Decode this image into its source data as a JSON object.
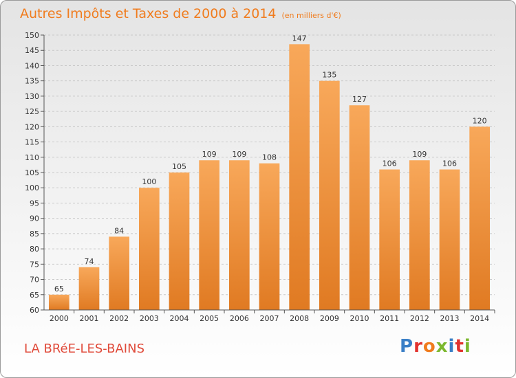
{
  "title": "Autres Impôts et Taxes de 2000 à 2014",
  "subtitle": "(en milliers d'€)",
  "commune": "LA BRéE-LES-BAINS",
  "logo": {
    "text": "Proxiti",
    "colors": [
      "#3a7fc6",
      "#e2322e",
      "#f07c1e",
      "#7cb82f",
      "#3a7fc6",
      "#e2322e",
      "#7cb82f"
    ]
  },
  "colors": {
    "title": "#f07c1e",
    "commune": "#e04a3a",
    "bar_light": "#f8a85a",
    "bar_dark": "#e07a22"
  },
  "chart_data": {
    "type": "bar",
    "categories": [
      "2000",
      "2001",
      "2002",
      "2003",
      "2004",
      "2005",
      "2006",
      "2007",
      "2008",
      "2009",
      "2010",
      "2011",
      "2012",
      "2013",
      "2014"
    ],
    "values": [
      65,
      74,
      84,
      100,
      105,
      109,
      109,
      108,
      147,
      135,
      127,
      106,
      109,
      106,
      120
    ],
    "data_labels": [
      "65",
      "74",
      "84",
      "100",
      "105",
      "109",
      "109",
      "108",
      "147",
      "135",
      "127",
      "106",
      "109",
      "106",
      "120"
    ],
    "title": "Autres Impôts et Taxes de 2000 à 2014",
    "xlabel": "",
    "ylabel": "",
    "ylim": [
      60,
      150
    ],
    "yticks": [
      60,
      65,
      70,
      75,
      80,
      85,
      90,
      95,
      100,
      105,
      110,
      115,
      120,
      125,
      130,
      135,
      140,
      145,
      150
    ],
    "grid": true
  }
}
